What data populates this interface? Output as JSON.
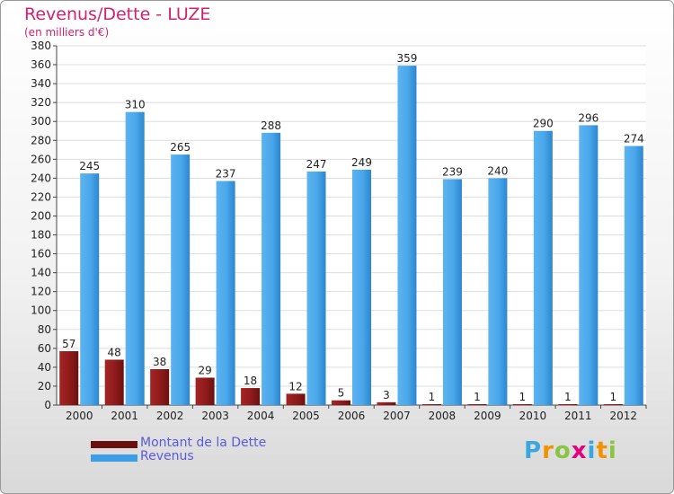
{
  "header": {
    "title": "Revenus/Dette - LUZE",
    "subtitle": "(en milliers d'€)"
  },
  "legend": {
    "debt_label": "Montant de la Dette",
    "revenue_label": "Revenus"
  },
  "logo": {
    "text": "Proxiti",
    "letters": [
      "P",
      "r",
      "o",
      "x",
      "i",
      "t",
      "i"
    ],
    "letter_colors": [
      "#39a7e0",
      "#f39200",
      "#8bc43f",
      "#e6007e",
      "#39a7e0",
      "#f39200",
      "#8bc43f"
    ]
  },
  "colors": {
    "debt": "#8b1a1a",
    "revenue": "#3d9ee6",
    "title": "#d2216e",
    "legend_text": "#5a5adc"
  },
  "chart_data": {
    "type": "bar",
    "title": "Revenus/Dette - LUZE",
    "subtitle": "(en milliers d'€)",
    "categories": [
      "2000",
      "2001",
      "2002",
      "2003",
      "2004",
      "2005",
      "2006",
      "2007",
      "2008",
      "2009",
      "2010",
      "2011",
      "2012"
    ],
    "series": [
      {
        "name": "Montant de la Dette",
        "values": [
          57,
          48,
          38,
          29,
          18,
          12,
          5,
          3,
          1,
          1,
          1,
          1,
          1
        ]
      },
      {
        "name": "Revenus",
        "values": [
          245,
          310,
          265,
          237,
          288,
          247,
          249,
          359,
          239,
          240,
          290,
          296,
          274
        ]
      }
    ],
    "ylim": [
      0,
      380
    ],
    "yticks": [
      0,
      20,
      40,
      60,
      80,
      100,
      120,
      140,
      160,
      180,
      200,
      220,
      240,
      260,
      280,
      300,
      320,
      340,
      360,
      380
    ],
    "grid": true,
    "legend_position": "bottom-left"
  }
}
